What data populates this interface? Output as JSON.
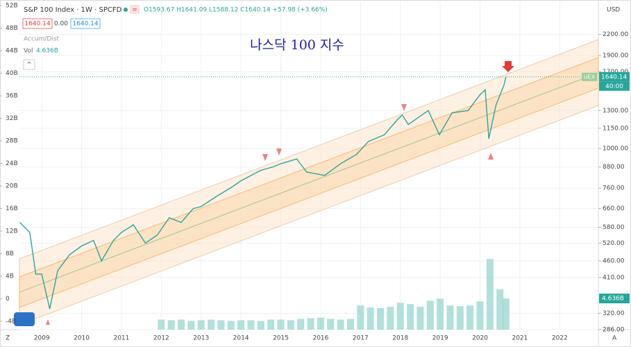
{
  "header": {
    "symbol": "S&P 100 Index · 1W · SPCFD",
    "ohlc": "O1593.67 H1641.09 L1588.12 C1640.14 +57.98 (+3.66%)",
    "price_box_1": "1640.14",
    "change_box": "0.00",
    "price_box_2": "1640.14",
    "accum_label": "Accum/Dist",
    "vol_label": "Vol",
    "vol_value": "4.636B"
  },
  "annotation": "나스닥 100 지수",
  "currency": "USD",
  "symbol_tag": "UEX",
  "countdown": "40:00",
  "chart_data": {
    "type": "line",
    "x": [
      2008.45,
      2008.7,
      2008.85,
      2009.0,
      2009.2,
      2009.4,
      2009.7,
      2010.0,
      2010.3,
      2010.5,
      2010.8,
      2011.0,
      2011.3,
      2011.6,
      2011.9,
      2012.2,
      2012.5,
      2012.8,
      2013.0,
      2013.4,
      2013.8,
      2014.0,
      2014.5,
      2014.8,
      2015.0,
      2015.4,
      2015.65,
      2016.1,
      2016.5,
      2016.9,
      2017.2,
      2017.6,
      2017.95,
      2018.05,
      2018.2,
      2018.7,
      2018.98,
      2019.3,
      2019.7,
      2020.0,
      2020.13,
      2020.22,
      2020.4,
      2020.6,
      2020.65
    ],
    "series": [
      {
        "color": "#26a69a",
        "values": [
          600,
          560,
          420,
          420,
          330,
          430,
          480,
          510,
          530,
          460,
          530,
          560,
          590,
          520,
          550,
          620,
          600,
          660,
          670,
          720,
          770,
          800,
          860,
          880,
          900,
          930,
          850,
          830,
          900,
          960,
          1050,
          1100,
          1230,
          1260,
          1180,
          1300,
          1100,
          1280,
          1300,
          1450,
          1500,
          1070,
          1350,
          1550,
          1640
        ]
      }
    ],
    "volume": {
      "color": "#9fd8d2",
      "x": [
        2012.0,
        2012.25,
        2012.5,
        2012.75,
        2013.0,
        2013.25,
        2013.5,
        2013.75,
        2014.0,
        2014.25,
        2014.5,
        2014.75,
        2015.0,
        2015.25,
        2015.5,
        2015.75,
        2016.0,
        2016.25,
        2016.5,
        2016.75,
        2017.0,
        2017.25,
        2017.5,
        2017.75,
        2018.0,
        2018.25,
        2018.5,
        2018.75,
        2019.0,
        2019.25,
        2019.5,
        2019.75,
        2020.0,
        2020.25,
        2020.5,
        2020.65
      ],
      "values": [
        1.5,
        1.4,
        1.5,
        1.3,
        1.4,
        1.5,
        1.4,
        1.3,
        1.4,
        1.4,
        1.3,
        1.5,
        1.5,
        1.4,
        1.6,
        1.7,
        1.8,
        1.6,
        1.5,
        1.6,
        3.6,
        3.3,
        3.2,
        3.4,
        4.0,
        3.8,
        3.4,
        4.3,
        4.6,
        3.6,
        3.5,
        3.6,
        4.2,
        10.5,
        6.0,
        4.636
      ],
      "lim": [
        0,
        49
      ],
      "last": {
        "value": 4.636,
        "label": "4.636B"
      }
    },
    "xlim": [
      2008.44,
      2022.97
    ],
    "xticks": [
      2009,
      2010,
      2011,
      2012,
      2013,
      2014,
      2015,
      2016,
      2017,
      2018,
      2019,
      2020,
      2021,
      2022
    ],
    "ylim": [
      286,
      2790
    ],
    "log_scale": true,
    "yticks": [
      {
        "value": 2200,
        "label": "2200.00"
      },
      {
        "value": 1900,
        "label": "1900.00"
      },
      {
        "value": 1700,
        "label": "1700.00"
      },
      {
        "value": 1300,
        "label": "1300.00"
      },
      {
        "value": 1150,
        "label": "1150.00"
      },
      {
        "value": 1000,
        "label": "1000.00"
      },
      {
        "value": 880,
        "label": "880.00"
      },
      {
        "value": 760,
        "label": "760.00"
      },
      {
        "value": 660,
        "label": "660.00"
      },
      {
        "value": 580,
        "label": "580.00"
      },
      {
        "value": 520,
        "label": "520.00"
      },
      {
        "value": 460,
        "label": "460.00"
      },
      {
        "value": 410,
        "label": "410.00"
      },
      {
        "value": 320,
        "label": "320.00"
      },
      {
        "value": 286,
        "label": "286.00"
      }
    ],
    "y2lim": [
      -5.5,
      53
    ],
    "y2ticks": [
      {
        "value": 52,
        "label": "52B"
      },
      {
        "value": 48,
        "label": "48B"
      },
      {
        "value": 44,
        "label": "44B"
      },
      {
        "value": 40,
        "label": "40B"
      },
      {
        "value": 36,
        "label": "36B"
      },
      {
        "value": 32,
        "label": "32B"
      },
      {
        "value": 28,
        "label": "28B"
      },
      {
        "value": 24,
        "label": "24B"
      },
      {
        "value": 20,
        "label": "20B"
      },
      {
        "value": 16,
        "label": "16B"
      },
      {
        "value": 12,
        "label": "12B"
      },
      {
        "value": 8,
        "label": "8B"
      },
      {
        "value": 4,
        "label": "4B"
      },
      0,
      {
        "value": -4,
        "label": "-4B"
      }
    ],
    "last_price": {
      "value": 1640.14,
      "label": "1640.14"
    },
    "grid": true
  }
}
